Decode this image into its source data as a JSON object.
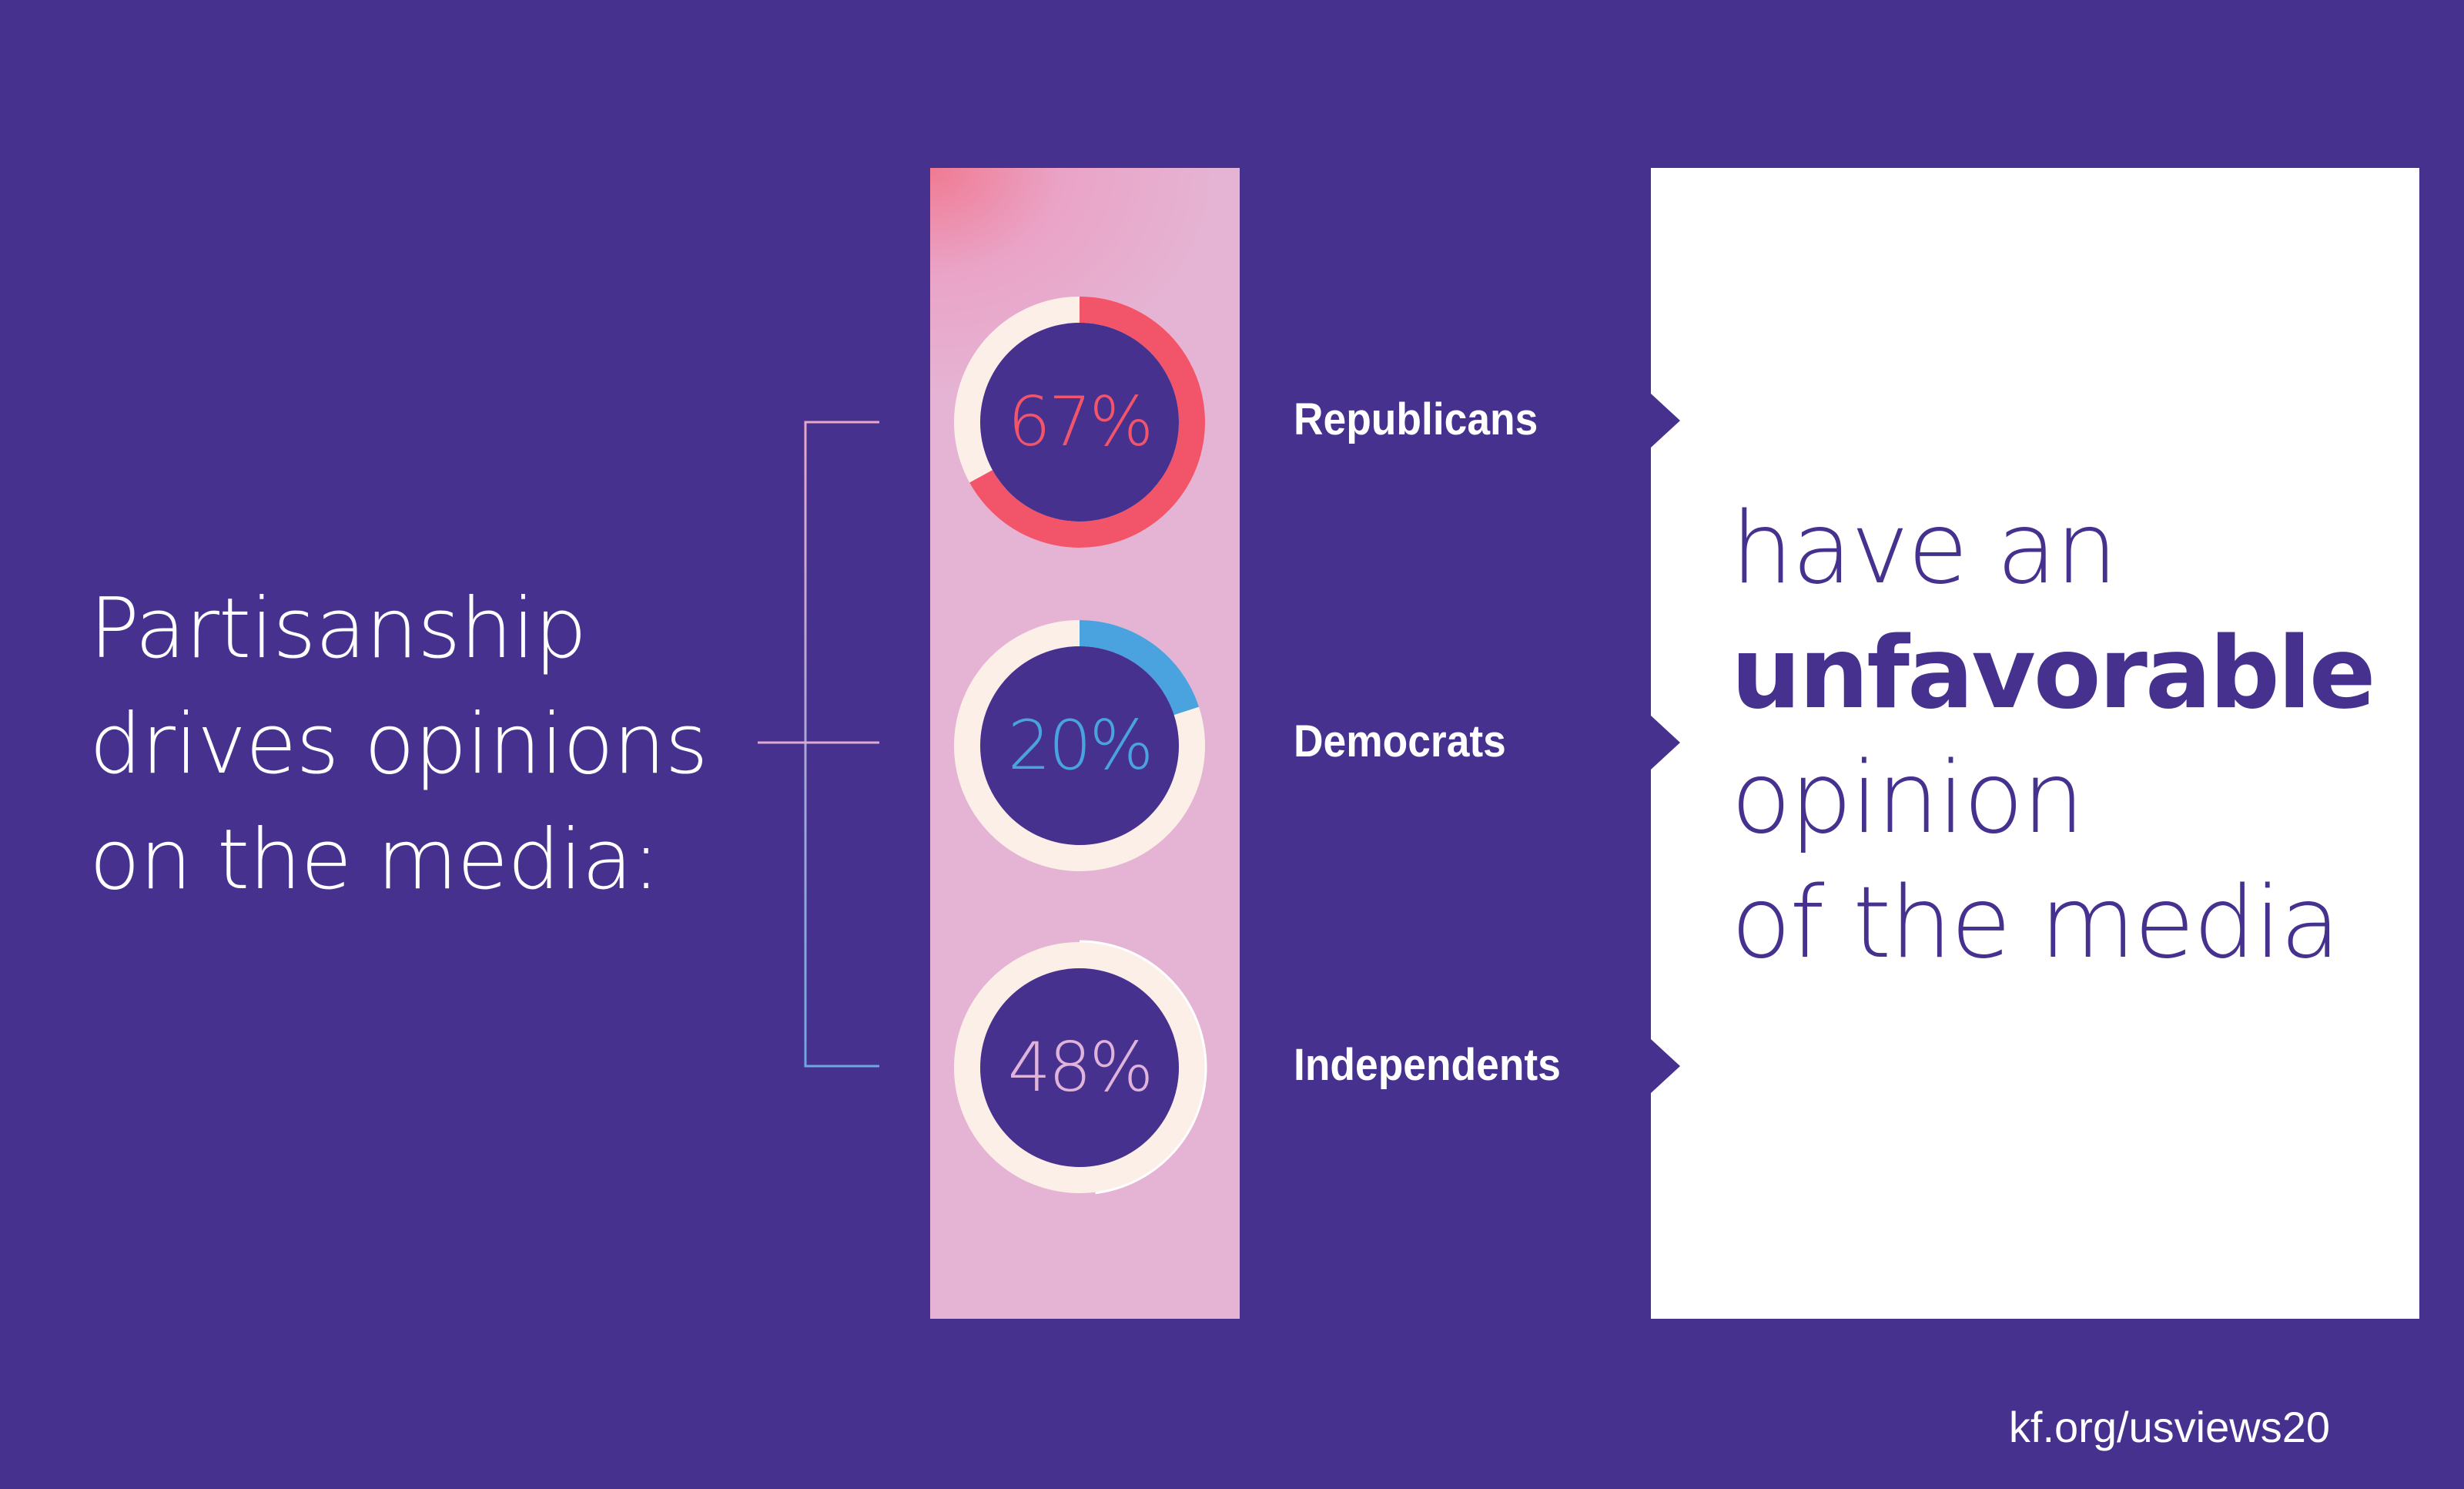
{
  "headline": {
    "line1": "Partisanship",
    "line2": "drives opinions",
    "line3": "on the media:"
  },
  "chart_data": {
    "type": "pie",
    "unit": "%",
    "categories": [
      "Republicans",
      "Democrats",
      "Independents"
    ],
    "values": [
      67,
      20,
      48
    ],
    "value_labels": [
      "67%",
      "20%",
      "48%"
    ],
    "colors": [
      "#f2546a",
      "#4aa3de",
      "#ffffff"
    ],
    "label_colors": [
      "#f2546a",
      "#4aa3de",
      "#e0b3da"
    ]
  },
  "callout": {
    "line1": "have an",
    "line2": "unfavorable",
    "line3": "opinion",
    "line4": "of the media"
  },
  "source": "kf.org/usviews20",
  "colors": {
    "background": "#46318f",
    "panel": "#e5b4d4",
    "ring_track": "#fcefe8",
    "callout_box": "#ffffff"
  }
}
